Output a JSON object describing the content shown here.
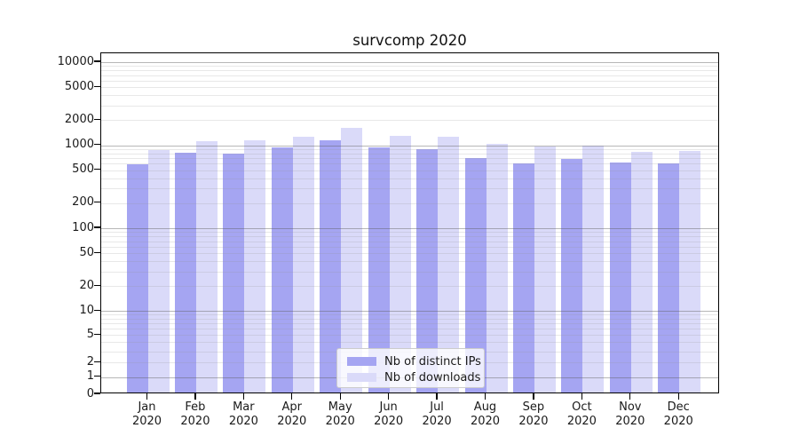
{
  "title": "survcomp 2020",
  "chart_data": {
    "type": "bar",
    "title": "survcomp 2020",
    "xlabel": "",
    "ylabel": "",
    "yscale": "symlog",
    "ylim": [
      0,
      12800
    ],
    "grid": true,
    "legend_position": "lower-center",
    "y_ticks": [
      0,
      1,
      2,
      5,
      10,
      20,
      50,
      100,
      200,
      500,
      1000,
      2000,
      5000,
      10000
    ],
    "categories": [
      "Jan 2020",
      "Feb 2020",
      "Mar 2020",
      "Apr 2020",
      "May 2020",
      "Jun 2020",
      "Jul 2020",
      "Aug 2020",
      "Sep 2020",
      "Oct 2020",
      "Nov 2020",
      "Dec 2020"
    ],
    "series": [
      {
        "name": "Nb of distinct IPs",
        "color": "#a5a5f2",
        "values": [
          590,
          810,
          790,
          940,
          1150,
          940,
          900,
          700,
          605,
          685,
          620,
          605
        ]
      },
      {
        "name": "Nb of downloads",
        "color": "#dadaf9",
        "values": [
          875,
          1120,
          1150,
          1270,
          1600,
          1300,
          1270,
          1040,
          965,
          990,
          830,
          855
        ]
      }
    ]
  },
  "colors": {
    "axis": "#000000",
    "major_grid": "#b3b3b3",
    "minor_grid": "#e4e4e4",
    "background": "#ffffff"
  }
}
